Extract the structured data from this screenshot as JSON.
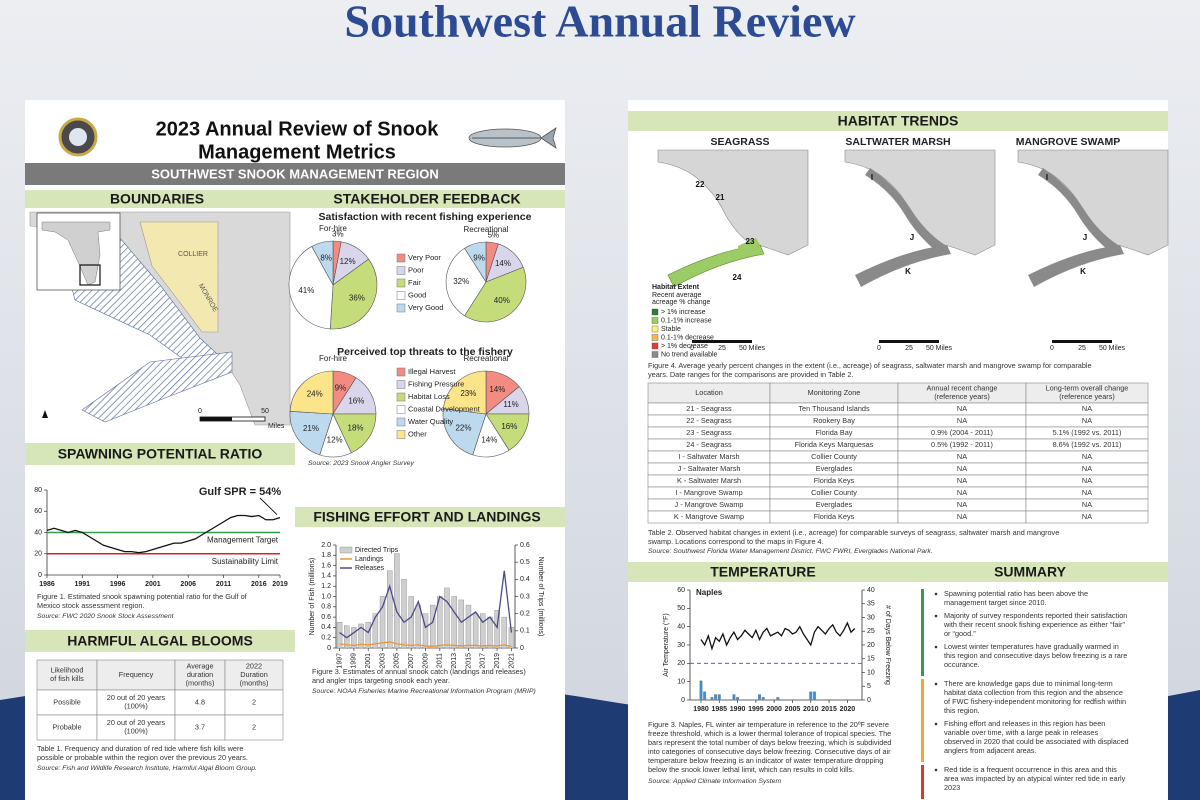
{
  "slide": {
    "title": "Southwest Annual Review"
  },
  "poster1": {
    "title": [
      "2023 Annual Review of Snook",
      "Management Metrics"
    ],
    "region": "SOUTHWEST SNOOK MANAGEMENT REGION",
    "boundaries": {
      "heading": "BOUNDARIES",
      "labels": [
        "COLLIER",
        "MONROE"
      ],
      "scale": [
        "0",
        "50",
        "Miles"
      ]
    },
    "stakeholder": {
      "heading": "STAKEHOLDER FEEDBACK"
    },
    "spr": {
      "caption": [
        "Figure 1. Estimated snook spawning potential ratio for the Gulf of",
        "Mexico stock assessment region."
      ],
      "source": "Source: FWC 2020 Snook Stock Assessment"
    },
    "hab": {
      "heading": "HARMFUL ALGAL BLOOMS",
      "table": {
        "headers": [
          [
            "Likelihood",
            "of fish kills"
          ],
          [
            "Frequency"
          ],
          [
            "Average",
            "duration",
            "(months)"
          ],
          [
            "2022",
            "Duration",
            "(months)"
          ]
        ],
        "rows": [
          [
            "Possible",
            [
              "20 out of 20 years",
              "(100%)"
            ],
            "4.8",
            "2"
          ],
          [
            "Probable",
            [
              "20 out of 20 years",
              "(100%)"
            ],
            "3.7",
            "2"
          ]
        ]
      },
      "caption": [
        "Table 1. Frequency and duration of red tide where fish kills were",
        "possible or probable within the region over the previous 20 years."
      ],
      "source": "Source: Fish and Wildlife Research Institute, Harmful Algal Bloom Group."
    },
    "effort": {
      "heading": "FISHING EFFORT AND LANDINGS",
      "caption": [
        "Figure 3. Estimates of annual snook catch (landings and releases)",
        "and angler trips targeting snook each year."
      ],
      "source": "Source: NOAA Fisheries Marine Recreational Information Program (MRIP)"
    }
  },
  "poster2": {
    "habitat": {
      "heading": "HABITAT TRENDS",
      "maps": [
        "SEAGRASS",
        "SALTWATER MARSH",
        "MANGROVE SWAMP"
      ],
      "seagrass_labels": [
        "22",
        "21",
        "23",
        "24"
      ],
      "marsh_labels": [
        "I",
        "J",
        "K"
      ],
      "mangrove_labels": [
        "I",
        "J",
        "K"
      ],
      "legend_title": "Habitat Extent",
      "legend_subtitle": [
        "Recent average",
        "acreage % change"
      ],
      "legend": [
        {
          "label": "> 1% increase",
          "color": "#2e7d32"
        },
        {
          "label": "0.1-1% increase",
          "color": "#9ccc65"
        },
        {
          "label": "Stable",
          "color": "#fff176"
        },
        {
          "label": "0.1-1% decrease",
          "color": "#ffb74d"
        },
        {
          "label": "> 1% decrease",
          "color": "#e53935"
        },
        {
          "label": "No trend available",
          "color": "#8a8a8a"
        }
      ],
      "scale": [
        "0",
        "25",
        "50 Miles"
      ],
      "caption": [
        "Figure 4. Average yearly percent changes in the extent (i.e., acreage) of seagrass, saltwater marsh and mangrove swamp for comparable",
        "years. Date ranges for the comparisons are provided in Table 2."
      ]
    },
    "table": {
      "headers": [
        [
          "Location"
        ],
        [
          "Monitoring Zone"
        ],
        [
          "Annual recent change",
          "(reference years)"
        ],
        [
          "Long-term overall change",
          "(reference years)"
        ]
      ],
      "rows": [
        [
          "21 - Seagrass",
          "Ten Thousand Islands",
          "NA",
          "NA"
        ],
        [
          "22 - Seagrass",
          "Rookery Bay",
          "NA",
          "NA"
        ],
        [
          "23 - Seagrass",
          "Florida Bay",
          "0.9% (2004 - 2011)",
          "5.1% (1992 vs. 2011)"
        ],
        [
          "24 - Seagrass",
          "Florida Keys Marquesas",
          "0.5% (1992 - 2011)",
          "8.6% (1992 vs. 2011)"
        ],
        [
          "I - Saltwater Marsh",
          "Collier County",
          "NA",
          "NA"
        ],
        [
          "J - Saltwater Marsh",
          "Everglades",
          "NA",
          "NA"
        ],
        [
          "K - Saltwater Marsh",
          "Florida Keys",
          "NA",
          "NA"
        ],
        [
          "I - Mangrove Swamp",
          "Collier County",
          "NA",
          "NA"
        ],
        [
          "J - Mangrove Swamp",
          "Everglades",
          "NA",
          "NA"
        ],
        [
          "K - Mangrove Swamp",
          "Florida Keys",
          "NA",
          "NA"
        ]
      ],
      "caption": [
        "Table 2. Observed habitat changes in extent (i.e., acreage) for comparable surveys of seagrass, saltwater marsh and mangrove",
        "swamp. Locations correspond to the maps in Figure 4."
      ],
      "source": "Source: Southwest Florida Water Management District, FWC FWRI, Everglades National Park."
    },
    "temperature": {
      "heading": "TEMPERATURE",
      "caption": [
        "Figure 3. Naples, FL winter air temperature in reference to the 20ºF severe",
        "freeze threshold, which is a lower thermal tolerance of tropical species. The",
        "bars represent the total number of days below freezing, which is subdivided",
        "into categories of consecutive days below freezing. Consecutive days of air",
        "temperature below freezing is an indicator of water temperature dropping",
        "below the snook lower lethal limit, which can results in cold kills."
      ],
      "source": "Source: Applied Climate Information System"
    },
    "summary": {
      "heading": "SUMMARY",
      "groups": [
        {
          "color": "#2e9e4a",
          "bullets": [
            [
              "Spawning potential ratio has been above the",
              "management target since 2010."
            ],
            [
              "Majority of survey respondents reported their satisfaction",
              "with their recent snook fishing experience as either “fair”",
              "or “good.”"
            ],
            [
              "Lowest winter temperatures have gradually warmed in",
              "this region and consecutive days below freezing is a rare",
              "occurance."
            ]
          ]
        },
        {
          "color": "#f0a830",
          "bullets": [
            [
              "There are knowledge gaps due to minimal long-term",
              "habitat data collection from this region and the absence",
              "of FWC fishery-independent monitoring for redfish within",
              "this region."
            ],
            [
              "Fishing effort and releases in this region has been",
              "variable over time, with a large peak in releases",
              "observed in 2020 that could be associated with displaced",
              "anglers from adjacent areas."
            ]
          ]
        },
        {
          "color": "#d93a2b",
          "bullets": [
            [
              "Red tide is a frequent occurrence in this area and this",
              "area was impacted by an atypical winter red tide in early",
              "2023"
            ]
          ]
        }
      ]
    }
  },
  "chart_data": [
    {
      "type": "pie",
      "title": "Satisfaction with recent fishing experience",
      "categories": [
        "Very Poor",
        "Poor",
        "Fair",
        "Good",
        "Very Good"
      ],
      "colors": [
        "#f28b82",
        "#d9d6ec",
        "#c5dc7a",
        "#ffffff",
        "#bcd9ee"
      ],
      "series": [
        {
          "name": "For-hire",
          "values": [
            3,
            12,
            36,
            41,
            8
          ],
          "value_labels": [
            "3%",
            "12%",
            "36%",
            "41%",
            "8%"
          ]
        },
        {
          "name": "Recreational",
          "values": [
            5,
            14,
            40,
            32,
            9
          ],
          "value_labels": [
            "5%",
            "14%",
            "40%",
            "32%",
            "9%"
          ]
        }
      ]
    },
    {
      "type": "pie",
      "title": "Perceived top threats to the fishery",
      "categories": [
        "Illegal Harvest",
        "Fishing Pressure",
        "Habitat Loss",
        "Coastal Development",
        "Water Quality",
        "Other"
      ],
      "colors": [
        "#f28b82",
        "#d9d6ec",
        "#c5dc7a",
        "#ffffff",
        "#bcd9ee",
        "#fbe48a"
      ],
      "series": [
        {
          "name": "For-hire",
          "values": [
            9,
            16,
            18,
            12,
            21,
            24
          ],
          "value_labels": [
            "9%",
            "16%",
            "18%",
            "12%",
            "21%",
            "24%"
          ]
        },
        {
          "name": "Recreational",
          "values": [
            14,
            11,
            16,
            14,
            22,
            23
          ],
          "value_labels": [
            "14%",
            "11%",
            "16%",
            "14%",
            "22%",
            "23%"
          ]
        }
      ],
      "source": "Source: 2023 Snook Angler Survey"
    },
    {
      "type": "line",
      "title": "SPAWNING POTENTIAL RATIO",
      "x": [
        1986,
        1987,
        1988,
        1989,
        1990,
        1991,
        1992,
        1993,
        1994,
        1995,
        1996,
        1997,
        1998,
        1999,
        2000,
        2001,
        2002,
        2003,
        2004,
        2005,
        2006,
        2007,
        2008,
        2009,
        2010,
        2011,
        2012,
        2013,
        2014,
        2015,
        2016,
        2017,
        2018,
        2019
      ],
      "values": [
        42,
        44,
        42,
        40,
        42,
        40,
        36,
        32,
        28,
        26,
        24,
        22,
        22,
        21,
        22,
        24,
        26,
        28,
        30,
        30,
        32,
        34,
        38,
        42,
        46,
        50,
        54,
        56,
        56,
        55,
        56,
        52,
        52,
        54
      ],
      "color": "#111111",
      "xlim": [
        1986,
        2019
      ],
      "xticks": [
        1986,
        1991,
        1996,
        2001,
        2006,
        2011,
        2016,
        2019
      ],
      "ylim": [
        0,
        80
      ],
      "yticks": [
        0,
        20,
        40,
        60,
        80
      ],
      "reference_lines": [
        {
          "name": "Management Target",
          "value": 40,
          "color": "#2e9e4a"
        },
        {
          "name": "Sustainability Limit",
          "value": 20,
          "color": "#e02020"
        }
      ],
      "annotation": "Gulf SPR = 54%"
    },
    {
      "type": "combo",
      "x": [
        1997,
        1998,
        1999,
        2000,
        2001,
        2002,
        2003,
        2004,
        2005,
        2006,
        2007,
        2008,
        2009,
        2010,
        2011,
        2012,
        2013,
        2014,
        2015,
        2016,
        2017,
        2018,
        2019,
        2020,
        2021
      ],
      "series": [
        {
          "name": "Directed Trips",
          "kind": "bar",
          "axis": "y2",
          "color": "#cfcfcf",
          "values": [
            0.15,
            0.13,
            0.12,
            0.14,
            0.15,
            0.2,
            0.3,
            0.45,
            0.55,
            0.4,
            0.3,
            0.25,
            0.2,
            0.25,
            0.3,
            0.35,
            0.3,
            0.28,
            0.25,
            0.2,
            0.2,
            0.18,
            0.22,
            0.18,
            0.12
          ]
        },
        {
          "name": "Landings",
          "kind": "line",
          "color": "#e8963a",
          "values": [
            0.08,
            0.06,
            0.05,
            0.07,
            0.06,
            0.08,
            0.1,
            0.12,
            0.08,
            0.06,
            0.05,
            0.06,
            0.04,
            0.03,
            0.05,
            0.06,
            0.05,
            0.04,
            0.05,
            0.05,
            0.04,
            0.05,
            0.04,
            0.06,
            0.03
          ]
        },
        {
          "name": "Releases",
          "kind": "line",
          "color": "#4b4a8c",
          "values": [
            0.3,
            0.2,
            0.3,
            0.4,
            0.3,
            0.6,
            0.8,
            1.2,
            0.7,
            0.5,
            0.6,
            0.9,
            0.4,
            0.5,
            1.0,
            0.9,
            0.7,
            0.5,
            0.6,
            0.7,
            0.5,
            0.6,
            0.4,
            1.5,
            0.3
          ]
        }
      ],
      "xlim": [
        1996.5,
        2021.5
      ],
      "xticks": [
        1997,
        1999,
        2001,
        2003,
        2005,
        2007,
        2009,
        2011,
        2013,
        2015,
        2017,
        2019,
        2021
      ],
      "xtick_rotation": 90,
      "ylim": [
        0,
        2
      ],
      "yticks": [
        0,
        0.2,
        0.4,
        0.6,
        0.8,
        {
          "value": 1,
          "label": "1.0"
        },
        1.2,
        1.4,
        1.6,
        1.8,
        {
          "value": 2,
          "label": "2.0"
        }
      ],
      "y2lim": [
        0,
        0.6
      ],
      "y2ticks": [
        0,
        0.1,
        0.2,
        0.3,
        0.4,
        0.5,
        0.6
      ],
      "ylabel": "Number of Fish (millions)",
      "y2label": "Number of Trips (millions)"
    },
    {
      "type": "combo",
      "title": "Naples",
      "x": [
        1980,
        1981,
        1982,
        1983,
        1984,
        1985,
        1986,
        1987,
        1988,
        1989,
        1990,
        1991,
        1992,
        1993,
        1994,
        1995,
        1996,
        1997,
        1998,
        1999,
        2000,
        2001,
        2002,
        2003,
        2004,
        2005,
        2006,
        2007,
        2008,
        2009,
        2010,
        2011,
        2012,
        2013,
        2014,
        2015,
        2016,
        2017,
        2018,
        2019,
        2020,
        2021,
        2022
      ],
      "series": [
        {
          "kind": "bar",
          "axis": "y2",
          "color": "#3a8fd0",
          "values": [
            7,
            3,
            0,
            1,
            2,
            2,
            0,
            0,
            0,
            2,
            1,
            0,
            0,
            0,
            0,
            0,
            2,
            1,
            0,
            0,
            0,
            1,
            0,
            0,
            0,
            0,
            0,
            0,
            0,
            0,
            3,
            3,
            0,
            0,
            0,
            0,
            0,
            0,
            0,
            0,
            0,
            0,
            0
          ]
        },
        {
          "kind": "line",
          "color": "#111111",
          "values": [
            33,
            30,
            35,
            28,
            34,
            32,
            36,
            30,
            34,
            37,
            33,
            35,
            38,
            36,
            34,
            38,
            33,
            37,
            39,
            35,
            36,
            37,
            35,
            39,
            38,
            36,
            37,
            40,
            36,
            33,
            30,
            37,
            40,
            38,
            36,
            39,
            41,
            37,
            35,
            38,
            42,
            37,
            39
          ]
        }
      ],
      "xlim": [
        1977,
        2024
      ],
      "xticks": [
        1980,
        1985,
        1990,
        1995,
        2000,
        2005,
        2010,
        2015,
        2020
      ],
      "ylim": [
        0,
        60
      ],
      "yticks": [
        0,
        10,
        20,
        30,
        40,
        50,
        60
      ],
      "y2lim": [
        0,
        40
      ],
      "y2ticks": [
        0,
        5,
        10,
        15,
        20,
        25,
        30,
        35,
        40
      ],
      "reference_lines": [
        {
          "value": 20,
          "color": "#3d6fd6",
          "style": "dashed"
        }
      ],
      "ylabel": "Air Temperature (°F)",
      "y2label": "# of Days Below Freezing"
    }
  ]
}
